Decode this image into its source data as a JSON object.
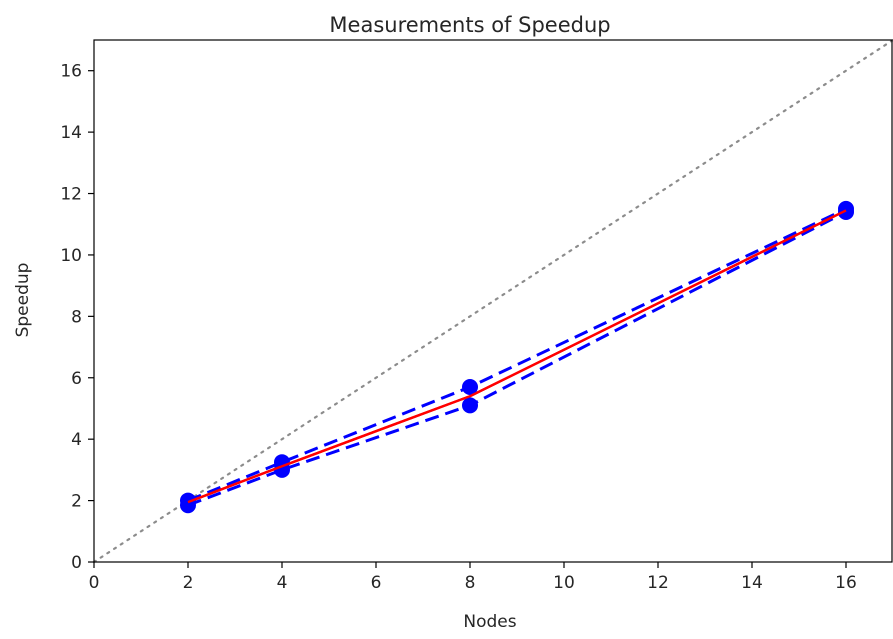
{
  "chart_data": {
    "type": "line",
    "title": "Measurements of Speedup",
    "xlabel": "Nodes",
    "ylabel": "Speedup",
    "xlim": [
      0,
      17
    ],
    "ylim": [
      0,
      17
    ],
    "xticks": [
      0,
      2,
      4,
      6,
      8,
      10,
      12,
      14,
      16
    ],
    "yticks": [
      0,
      2,
      4,
      6,
      8,
      10,
      12,
      14,
      16
    ],
    "grid": false,
    "x": [
      2,
      4,
      8,
      16
    ],
    "series": [
      {
        "role": "ideal",
        "style": "dotted",
        "color": "#8c8c8c",
        "x": [
          0,
          17
        ],
        "values": [
          0,
          17
        ]
      },
      {
        "role": "upper",
        "style": "dashed",
        "color": "#0000ff",
        "markers": true,
        "values": [
          2.0,
          3.25,
          5.7,
          11.5
        ]
      },
      {
        "role": "lower",
        "style": "dashed",
        "color": "#0000ff",
        "markers": true,
        "values": [
          1.85,
          3.0,
          5.1,
          11.4
        ]
      },
      {
        "role": "mean",
        "style": "solid",
        "color": "#ff0000",
        "markers": false,
        "values": [
          1.95,
          3.12,
          5.4,
          11.45
        ]
      }
    ]
  }
}
